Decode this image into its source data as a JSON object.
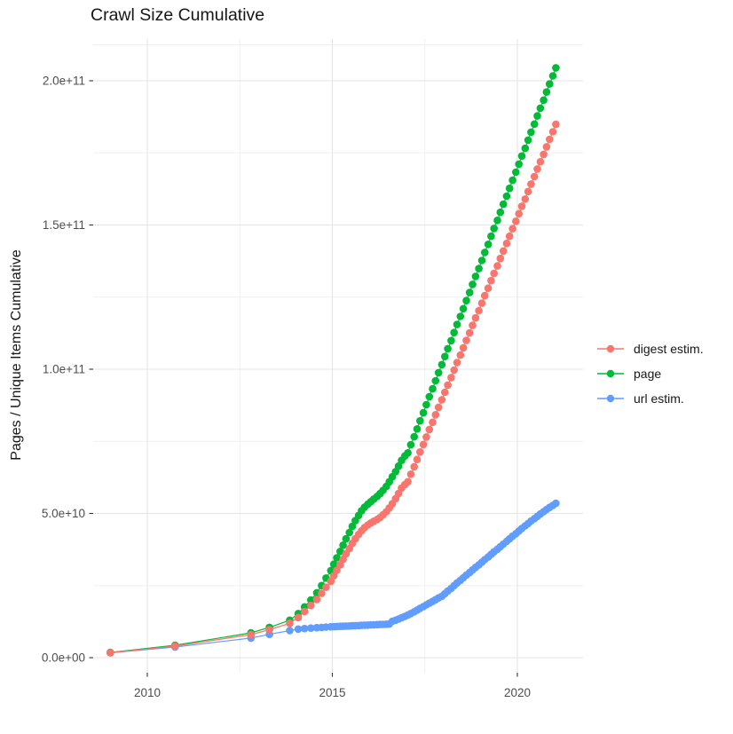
{
  "title": "Crawl Size Cumulative",
  "legend": {
    "items": [
      {
        "label": "digest estim.",
        "color": "#F8766D"
      },
      {
        "label": "page",
        "color": "#00BA38"
      },
      {
        "label": "url estim.",
        "color": "#619CFF"
      }
    ]
  },
  "colors": {
    "grid_major": "#e4e4e4",
    "grid_minor": "#f0f0f0",
    "tick": "#333333",
    "tick_label": "#4d4d4d"
  },
  "chart_data": {
    "type": "line",
    "title": "Crawl Size Cumulative",
    "xlabel": "",
    "ylabel": "Pages / Unique Items Cumulative",
    "legend_position": "right",
    "grid": true,
    "marker": "point",
    "y_unit": "1e9 (billions); axis shown in scientific notation",
    "xlim": [
      2008.5,
      2021.75
    ],
    "ylim_1e9": [
      0,
      215
    ],
    "x_ticks": {
      "major": [
        2010,
        2015,
        2020
      ],
      "minor": [
        2012.5,
        2017.5
      ],
      "labels": [
        "2010",
        "2015",
        "2020"
      ]
    },
    "y_ticks": {
      "major_1e9": [
        0,
        50,
        100,
        150,
        200
      ],
      "minor_1e9": [
        25,
        75,
        125,
        175,
        212.5
      ],
      "labels": [
        "0.0e+00",
        "5.0e+10",
        "1.0e+11",
        "1.5e+11",
        "2.0e+11"
      ]
    },
    "x": [
      2009.0,
      2010.75,
      2012.8,
      2013.3,
      2013.85,
      2014.08,
      2014.25,
      2014.42,
      2014.58,
      2014.71,
      2014.83,
      2014.96,
      2015.04,
      2015.12,
      2015.21,
      2015.29,
      2015.37,
      2015.46,
      2015.54,
      2015.62,
      2015.71,
      2015.79,
      2015.87,
      2015.96,
      2016.04,
      2016.12,
      2016.21,
      2016.29,
      2016.37,
      2016.46,
      2016.54,
      2016.62,
      2016.71,
      2016.79,
      2016.87,
      2016.96,
      2017.04,
      2017.12,
      2017.21,
      2017.29,
      2017.37,
      2017.46,
      2017.54,
      2017.62,
      2017.71,
      2017.79,
      2017.87,
      2017.96,
      2018.04,
      2018.12,
      2018.21,
      2018.29,
      2018.37,
      2018.46,
      2018.54,
      2018.62,
      2018.71,
      2018.79,
      2018.87,
      2018.96,
      2019.04,
      2019.12,
      2019.21,
      2019.29,
      2019.37,
      2019.46,
      2019.54,
      2019.62,
      2019.71,
      2019.79,
      2019.87,
      2019.96,
      2020.04,
      2020.12,
      2020.21,
      2020.29,
      2020.37,
      2020.46,
      2020.54,
      2020.62,
      2020.71,
      2020.79,
      2020.87,
      2020.96,
      2021.04
    ],
    "series": [
      {
        "name": "digest estim.",
        "color": "#F8766D",
        "y_1e9": [
          1.7,
          4.0,
          8.0,
          9.7,
          11.9,
          13.9,
          16.0,
          18.1,
          20.2,
          22.3,
          24.4,
          26.5,
          28.4,
          30.3,
          32.2,
          34.1,
          36.0,
          37.8,
          39.6,
          41.2,
          42.7,
          44.0,
          45.1,
          46.0,
          46.7,
          47.3,
          47.9,
          48.6,
          49.5,
          50.6,
          51.9,
          53.4,
          55.1,
          56.9,
          58.8,
          60.0,
          61.0,
          63.6,
          66.2,
          68.7,
          71.3,
          73.9,
          76.5,
          79.1,
          81.6,
          84.2,
          86.8,
          89.4,
          92.0,
          94.5,
          97.1,
          99.7,
          102.3,
          104.9,
          107.4,
          110.0,
          112.6,
          115.2,
          117.8,
          120.3,
          122.9,
          125.5,
          128.1,
          130.7,
          133.2,
          135.8,
          138.4,
          141.0,
          143.6,
          146.1,
          148.7,
          151.3,
          153.9,
          156.5,
          159.0,
          161.6,
          164.2,
          166.8,
          169.4,
          171.9,
          174.5,
          177.1,
          179.7,
          182.3,
          184.9
        ]
      },
      {
        "name": "page",
        "color": "#00BA38",
        "y_1e9": [
          1.8,
          4.3,
          8.6,
          10.5,
          13.0,
          15.3,
          17.6,
          20.0,
          22.5,
          25.0,
          27.6,
          30.2,
          32.4,
          34.6,
          36.8,
          39.0,
          41.2,
          43.4,
          45.5,
          47.5,
          49.3,
          50.9,
          52.2,
          53.2,
          54.1,
          55.0,
          55.9,
          56.9,
          58.0,
          59.4,
          61.0,
          62.7,
          64.5,
          66.4,
          68.4,
          69.9,
          71.0,
          73.8,
          76.6,
          79.3,
          82.1,
          84.9,
          87.7,
          90.5,
          93.2,
          96.0,
          98.8,
          101.6,
          104.4,
          107.1,
          109.9,
          112.7,
          115.5,
          118.3,
          121.0,
          123.8,
          126.6,
          129.4,
          132.2,
          134.9,
          137.7,
          140.5,
          143.3,
          146.1,
          148.8,
          151.6,
          154.4,
          157.2,
          160.0,
          162.7,
          165.5,
          168.3,
          171.1,
          173.9,
          176.6,
          179.4,
          182.2,
          185.0,
          187.8,
          190.5,
          193.3,
          196.1,
          198.9,
          201.7,
          204.5
        ]
      },
      {
        "name": "url estim.",
        "color": "#619CFF",
        "y_1e9": [
          1.7,
          3.7,
          6.8,
          8.1,
          9.4,
          9.9,
          10.1,
          10.25,
          10.4,
          10.5,
          10.6,
          10.7,
          10.75,
          10.8,
          10.85,
          10.9,
          10.95,
          11.0,
          11.05,
          11.1,
          11.15,
          11.2,
          11.25,
          11.3,
          11.35,
          11.4,
          11.45,
          11.5,
          11.55,
          11.6,
          11.65,
          12.6,
          13.0,
          13.4,
          13.8,
          14.3,
          14.8,
          15.3,
          15.9,
          16.5,
          17.1,
          17.7,
          18.3,
          18.9,
          19.5,
          20.1,
          20.7,
          21.3,
          22.2,
          23.1,
          24.0,
          25.0,
          25.9,
          26.8,
          27.7,
          28.6,
          29.5,
          30.4,
          31.3,
          32.2,
          33.1,
          34.0,
          34.9,
          35.8,
          36.7,
          37.6,
          38.5,
          39.4,
          40.3,
          41.2,
          42.1,
          43.0,
          43.9,
          44.8,
          45.7,
          46.5,
          47.4,
          48.2,
          49.0,
          49.8,
          50.6,
          51.4,
          52.1,
          52.8,
          53.5
        ]
      }
    ]
  }
}
